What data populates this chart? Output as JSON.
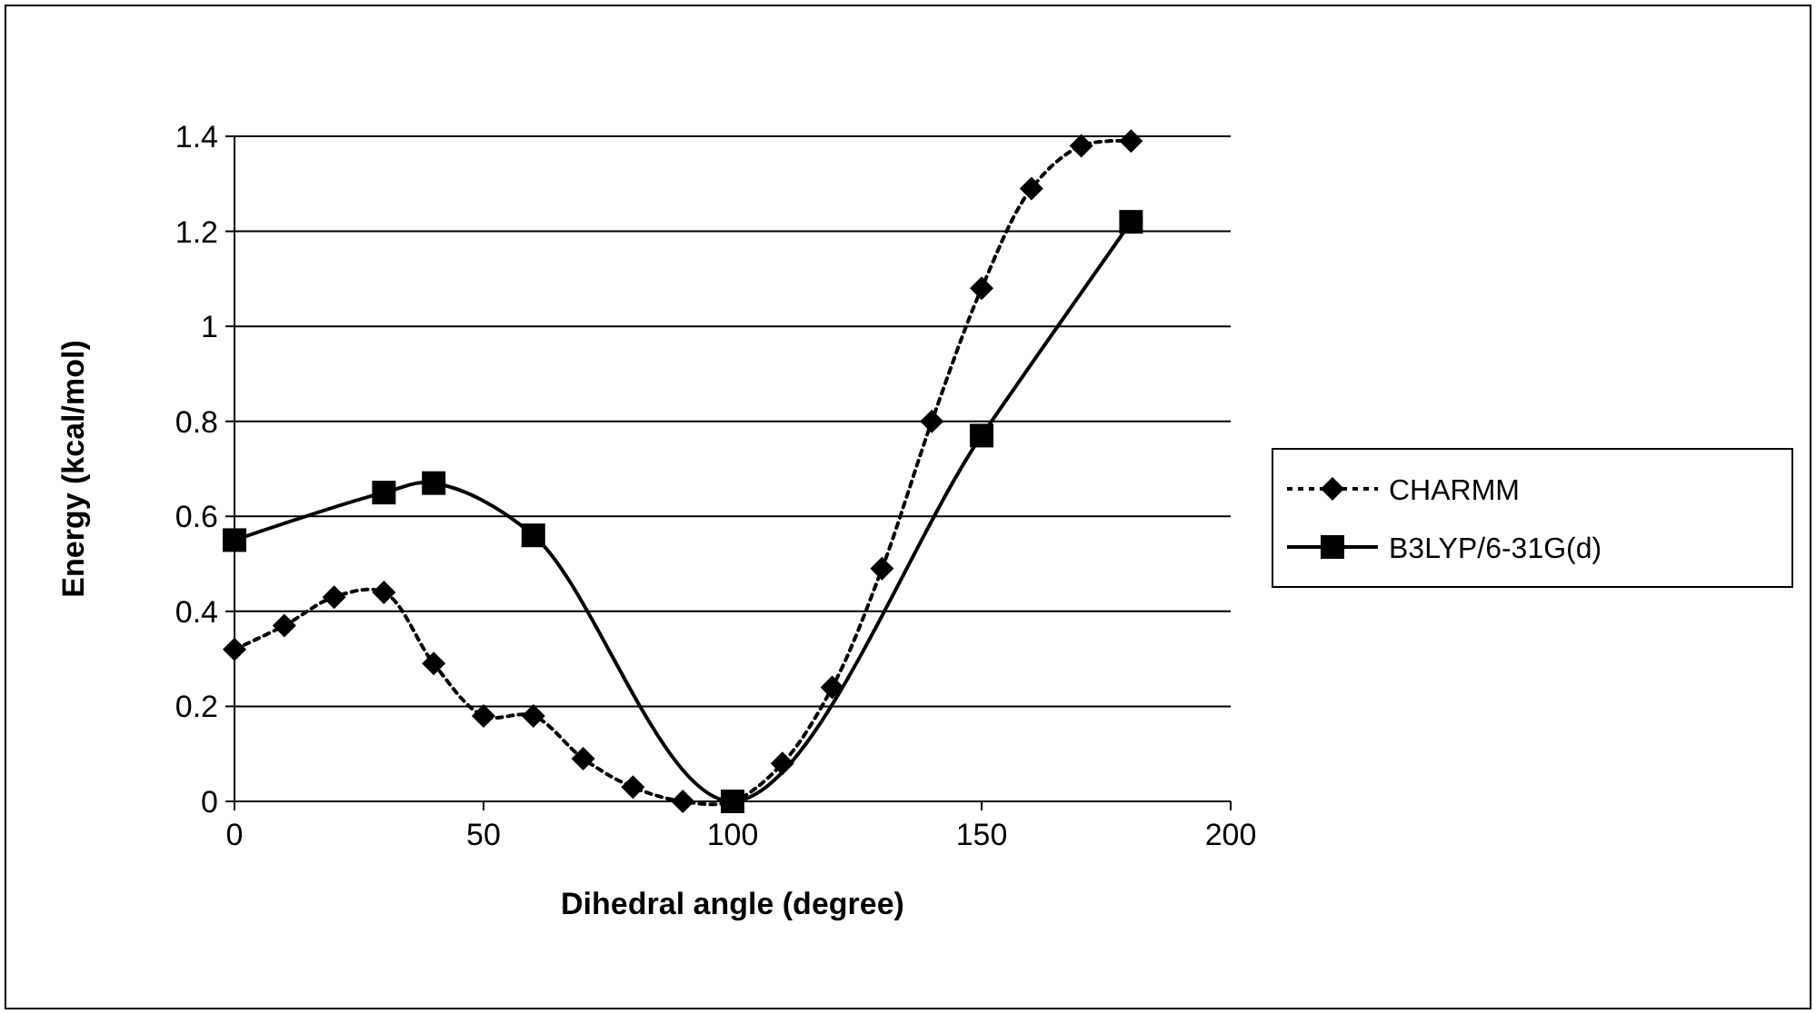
{
  "chart_data": {
    "type": "line",
    "xlabel": "Dihedral angle (degree)",
    "ylabel": "Energy (kcal/mol)",
    "xlim": [
      0,
      200
    ],
    "xticks": [
      0,
      50,
      100,
      150,
      200
    ],
    "ylim": [
      0,
      1.4
    ],
    "yticks": [
      0,
      0.2,
      0.4,
      0.6,
      0.8,
      1,
      1.2,
      1.4
    ],
    "grid": "y",
    "legend": "right",
    "series": [
      {
        "name": "CHARMM",
        "color": "#000000",
        "marker": "diamond",
        "line_style": "dotted",
        "x": [
          0,
          10,
          20,
          30,
          40,
          50,
          60,
          70,
          80,
          90,
          100,
          110,
          120,
          130,
          140,
          150,
          160,
          170,
          180
        ],
        "values": [
          0.32,
          0.37,
          0.43,
          0.44,
          0.29,
          0.18,
          0.18,
          0.09,
          0.03,
          0.0,
          0.0,
          0.08,
          0.24,
          0.49,
          0.8,
          1.08,
          1.29,
          1.38,
          1.39
        ]
      },
      {
        "name": "B3LYP/6-31G(d)",
        "color": "#000000",
        "marker": "square",
        "line_style": "solid",
        "x": [
          0,
          30,
          40,
          60,
          100,
          150,
          180
        ],
        "values": [
          0.55,
          0.65,
          0.67,
          0.56,
          0.0,
          0.77,
          1.22
        ]
      }
    ]
  }
}
